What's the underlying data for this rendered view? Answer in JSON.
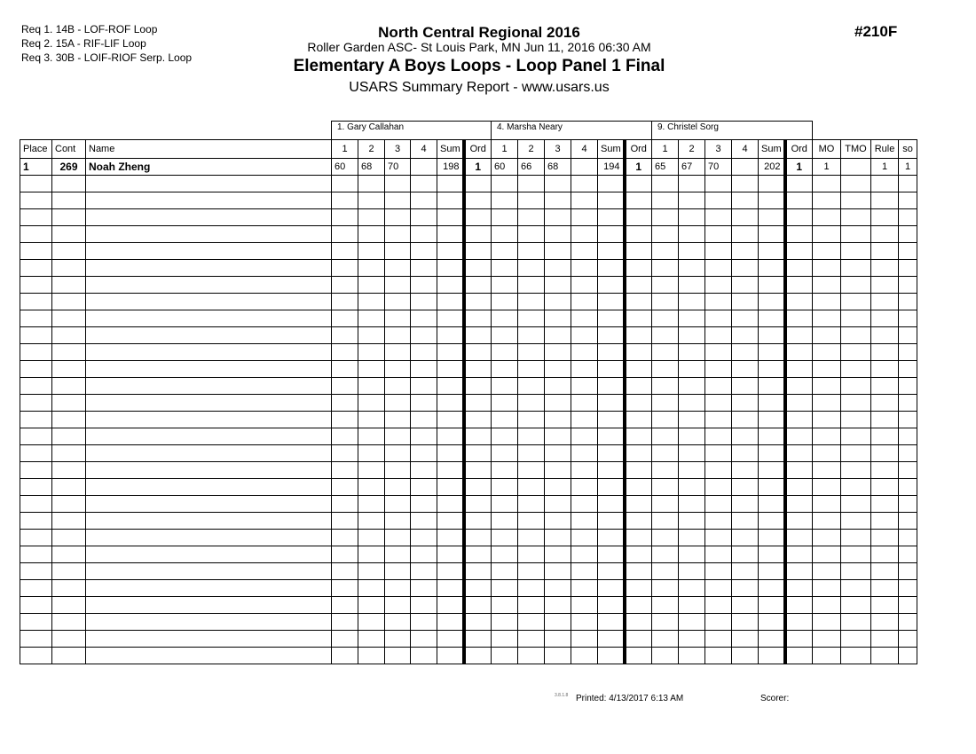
{
  "requirements": [
    "Req 1. 14B - LOF-ROF Loop",
    "Req 2. 15A - RIF-LIF Loop",
    "Req 3. 30B - LOIF-RIOF Serp. Loop"
  ],
  "header": {
    "title": "North Central Regional 2016",
    "location": "Roller Garden ASC- St Louis Park, MN  Jun 11, 2016  06:30 AM",
    "event": "Elementary A Boys Loops - Loop Panel 1 Final",
    "report": "USARS Summary Report - www.usars.us",
    "event_number": "#210F"
  },
  "judges": [
    "1.  Gary Callahan",
    "4.  Marsha Neary",
    "9.  Christel Sorg"
  ],
  "columns": {
    "place": "Place",
    "cont": "Cont",
    "name": "Name",
    "judge_cols": [
      "1",
      "2",
      "3",
      "4",
      "Sum",
      "Ord"
    ],
    "extra": [
      "MO",
      "TMO",
      "Rule",
      "so"
    ]
  },
  "rows": [
    {
      "place": "1",
      "cont": "269",
      "name": "Noah Zheng",
      "judges": [
        {
          "scores": [
            "60",
            "68",
            "70",
            ""
          ],
          "sum": "198",
          "ord": "1"
        },
        {
          "scores": [
            "60",
            "66",
            "68",
            ""
          ],
          "sum": "194",
          "ord": "1"
        },
        {
          "scores": [
            "65",
            "67",
            "70",
            ""
          ],
          "sum": "202",
          "ord": "1"
        }
      ],
      "mo": "1",
      "tmo": "",
      "rule": "1",
      "so": "1"
    }
  ],
  "footer": {
    "version": "3.8.1.8",
    "printed": "Printed:  4/13/2017  6:13 AM",
    "scorer": "Scorer:"
  }
}
